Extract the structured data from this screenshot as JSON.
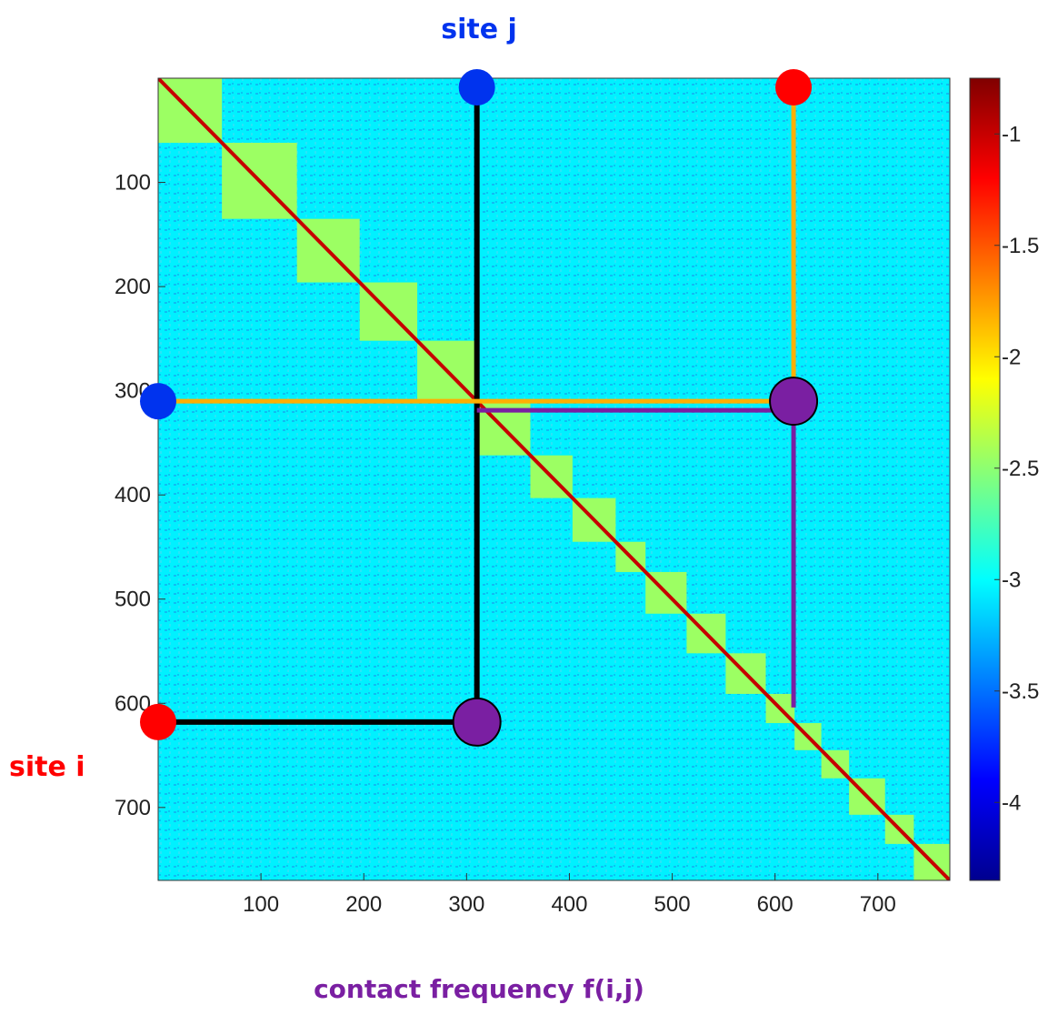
{
  "chart_data": {
    "type": "heatmap",
    "title": "",
    "xlabel": "",
    "ylabel": "",
    "xlim": [
      0,
      770
    ],
    "ylim": [
      770,
      0
    ],
    "x_ticks": [
      100,
      200,
      300,
      400,
      500,
      600,
      700
    ],
    "y_ticks": [
      100,
      200,
      300,
      400,
      500,
      600,
      700
    ],
    "colorbar": {
      "range": [
        -4.35,
        -0.75
      ],
      "ticks": [
        -1,
        -1.5,
        -2,
        -2.5,
        -3,
        -3.5,
        -4
      ],
      "colormap": "jet"
    },
    "background_level": -3.05,
    "diagonal_level": -1.0,
    "domain_level": -2.45,
    "domains": [
      {
        "start": 0,
        "end": 62
      },
      {
        "start": 62,
        "end": 135
      },
      {
        "start": 135,
        "end": 196
      },
      {
        "start": 196,
        "end": 252
      },
      {
        "start": 252,
        "end": 311
      },
      {
        "start": 311,
        "end": 362
      },
      {
        "start": 362,
        "end": 403
      },
      {
        "start": 403,
        "end": 445
      },
      {
        "start": 445,
        "end": 474
      },
      {
        "start": 474,
        "end": 514
      },
      {
        "start": 514,
        "end": 552
      },
      {
        "start": 552,
        "end": 591
      },
      {
        "start": 591,
        "end": 619
      },
      {
        "start": 619,
        "end": 645
      },
      {
        "start": 645,
        "end": 672
      },
      {
        "start": 672,
        "end": 707
      },
      {
        "start": 707,
        "end": 735
      },
      {
        "start": 735,
        "end": 770
      }
    ],
    "annotations": {
      "site_i": {
        "label": "site i",
        "value": 618,
        "color": "#ff0000"
      },
      "site_j": {
        "label": "site j",
        "value": 310,
        "color": "#0033ee"
      },
      "contact": {
        "label": "contact frequency f(i,j)",
        "color": "#7a1fa2"
      },
      "pairs": [
        {
          "x": 310,
          "y": 618,
          "color": "#000000"
        },
        {
          "x": 618,
          "y": 310,
          "color": "#ffb000"
        },
        {
          "x": 618,
          "y": 310,
          "to_diag": 618,
          "color": "#7a1fa2"
        }
      ]
    }
  }
}
